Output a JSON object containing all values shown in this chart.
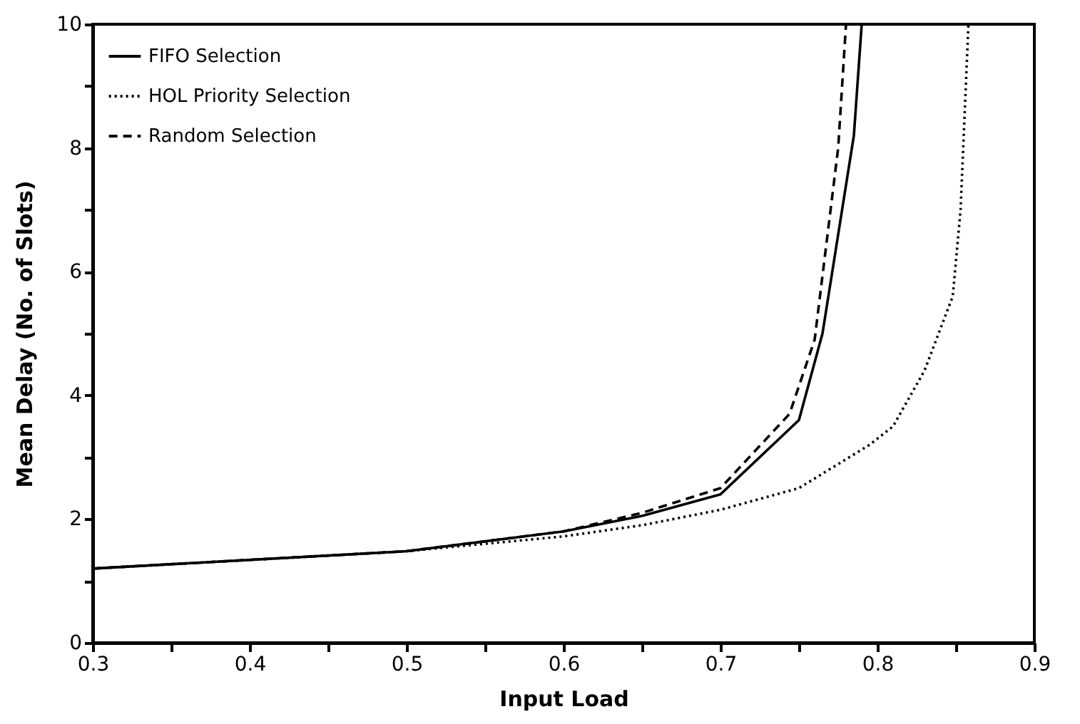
{
  "chart_data": {
    "type": "line",
    "xlabel": "Input Load",
    "ylabel": "Mean Delay (No. of Slots)",
    "xlim": [
      0.3,
      0.9
    ],
    "ylim": [
      0,
      10
    ],
    "xticks": [
      0.3,
      {
        "value": 0.35,
        "label": null
      },
      0.4,
      {
        "value": 0.45,
        "label": null
      },
      0.5,
      {
        "value": 0.55,
        "label": null
      },
      0.6,
      {
        "value": 0.65,
        "label": null
      },
      0.7,
      {
        "value": 0.75,
        "label": null
      },
      0.8,
      {
        "value": 0.85,
        "label": null
      },
      0.9
    ],
    "yticks": [
      0,
      {
        "value": 1,
        "label": null
      },
      2,
      {
        "value": 3,
        "label": null
      },
      4,
      {
        "value": 5,
        "label": null
      },
      6,
      {
        "value": 7,
        "label": null
      },
      8,
      {
        "value": 9,
        "label": null
      },
      10
    ],
    "grid": false,
    "legend": "top left",
    "marker": "none",
    "series": [
      {
        "name": "FIFO Selection",
        "color": "#000000",
        "line_style": "solid",
        "x": [
          0.3,
          0.5,
          0.6,
          0.65,
          0.7,
          0.75,
          0.765,
          0.785,
          0.79
        ],
        "values": [
          1.2,
          1.48,
          1.8,
          2.05,
          2.4,
          3.6,
          5.0,
          8.2,
          10
        ]
      },
      {
        "name": "HOL Priority Selection",
        "color": "#000000",
        "line_style": "dotted",
        "x": [
          0.3,
          0.5,
          0.6,
          0.65,
          0.7,
          0.75,
          0.795,
          0.81,
          0.83,
          0.848,
          0.853,
          0.858
        ],
        "values": [
          1.2,
          1.48,
          1.72,
          1.9,
          2.15,
          2.5,
          3.2,
          3.5,
          4.4,
          5.6,
          7.0,
          10
        ]
      },
      {
        "name": "Random Selection",
        "color": "#000000",
        "line_style": "dashed",
        "x": [
          0.3,
          0.5,
          0.6,
          0.65,
          0.7,
          0.744,
          0.76,
          0.775,
          0.78
        ],
        "values": [
          1.2,
          1.48,
          1.8,
          2.1,
          2.5,
          3.7,
          4.9,
          8.0,
          10
        ]
      }
    ]
  }
}
